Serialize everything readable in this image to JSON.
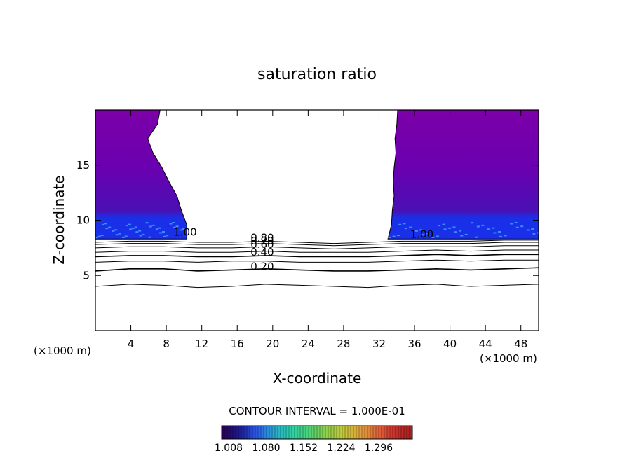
{
  "chart_data": {
    "type": "heatmap",
    "title": "saturation ratio",
    "xlabel": "X-coordinate",
    "ylabel": "Z-coordinate",
    "x_unit_left": "(×1000 m)",
    "x_unit_right": "(×1000 m)",
    "xlim": [
      0,
      50
    ],
    "ylim": [
      0,
      20
    ],
    "x_ticks": [
      4,
      8,
      12,
      16,
      20,
      24,
      28,
      32,
      36,
      40,
      44,
      48
    ],
    "y_ticks": [
      5,
      10,
      15
    ],
    "contour_lines": [
      {
        "value": 0.1,
        "z": [
          4.0,
          4.2,
          4.1,
          3.9,
          4.0,
          4.2,
          4.1,
          4.0,
          3.9,
          4.1,
          4.2,
          4.0,
          4.1,
          4.2
        ]
      },
      {
        "value": 0.2,
        "z": [
          5.4,
          5.6,
          5.6,
          5.4,
          5.5,
          5.6,
          5.5,
          5.4,
          5.4,
          5.5,
          5.6,
          5.5,
          5.6,
          5.7
        ]
      },
      {
        "value": 0.3,
        "z": [
          6.2,
          6.3,
          6.3,
          6.2,
          6.3,
          6.3,
          6.2,
          6.2,
          6.2,
          6.3,
          6.4,
          6.3,
          6.4,
          6.4
        ]
      },
      {
        "value": 0.4,
        "z": [
          6.7,
          6.8,
          6.8,
          6.7,
          6.7,
          6.8,
          6.7,
          6.7,
          6.7,
          6.8,
          6.9,
          6.8,
          6.9,
          6.9
        ]
      },
      {
        "value": 0.5,
        "z": [
          7.1,
          7.2,
          7.2,
          7.1,
          7.1,
          7.2,
          7.1,
          7.1,
          7.1,
          7.2,
          7.3,
          7.2,
          7.3,
          7.3
        ]
      },
      {
        "value": 0.6,
        "z": [
          7.5,
          7.6,
          7.6,
          7.5,
          7.5,
          7.6,
          7.5,
          7.4,
          7.5,
          7.6,
          7.6,
          7.6,
          7.7,
          7.7
        ]
      },
      {
        "value": 0.7,
        "z": [
          7.8,
          7.9,
          7.9,
          7.8,
          7.8,
          7.9,
          7.8,
          7.7,
          7.8,
          7.9,
          7.9,
          7.9,
          8.0,
          8.0
        ]
      },
      {
        "value": 0.8,
        "z": [
          8.0,
          8.1,
          8.1,
          8.0,
          8.0,
          8.1,
          8.0,
          7.9,
          8.0,
          8.1,
          8.1,
          8.1,
          8.2,
          8.2
        ]
      }
    ],
    "contour_labels": [
      {
        "text": "0.80",
        "x": 17.5,
        "z": 8.1
      },
      {
        "text": "0.70",
        "x": 17.5,
        "z": 7.8
      },
      {
        "text": "0.60",
        "x": 17.5,
        "z": 7.5
      },
      {
        "text": "0.40",
        "x": 17.5,
        "z": 6.8
      },
      {
        "text": "0.20",
        "x": 17.5,
        "z": 5.5
      },
      {
        "text": "1.00",
        "x": 8.8,
        "z": 8.6
      },
      {
        "text": "1.00",
        "x": 35.5,
        "z": 8.4
      }
    ],
    "supersaturated_regions": [
      {
        "name": "left",
        "x_range": [
          0,
          10.3
        ],
        "z_range": [
          8.3,
          20
        ],
        "edge_x": [
          7.3,
          7.0,
          5.9,
          6.5,
          7.5,
          8.3,
          9.2,
          9.7,
          10.3,
          10.3
        ]
      },
      {
        "name": "right",
        "x_range": [
          33.0,
          50
        ],
        "z_range": [
          8.3,
          20
        ],
        "edge_x": [
          34.1,
          34.0,
          33.8,
          33.9,
          33.7,
          33.6,
          33.7,
          33.5,
          33.4,
          33.0
        ]
      }
    ],
    "colorbar": {
      "label": "CONTOUR INTERVAL = 1.000E-01",
      "tick_labels": [
        "1.008",
        "1.080",
        "1.152",
        "1.224",
        "1.296"
      ],
      "colors": [
        "#2a0050",
        "#1c1a8c",
        "#2a58e8",
        "#2aa6d0",
        "#2ccfa6",
        "#4cd27a",
        "#8ad04a",
        "#c4c83a",
        "#e0a23a",
        "#e0643a",
        "#c8302a",
        "#a02020"
      ]
    },
    "fill_colors": {
      "upper": "#7c00a8",
      "mid": "#6a00b0",
      "deep": "#4a10b4",
      "band": "#1a30e8",
      "band_speck": "#3a8cff"
    }
  }
}
